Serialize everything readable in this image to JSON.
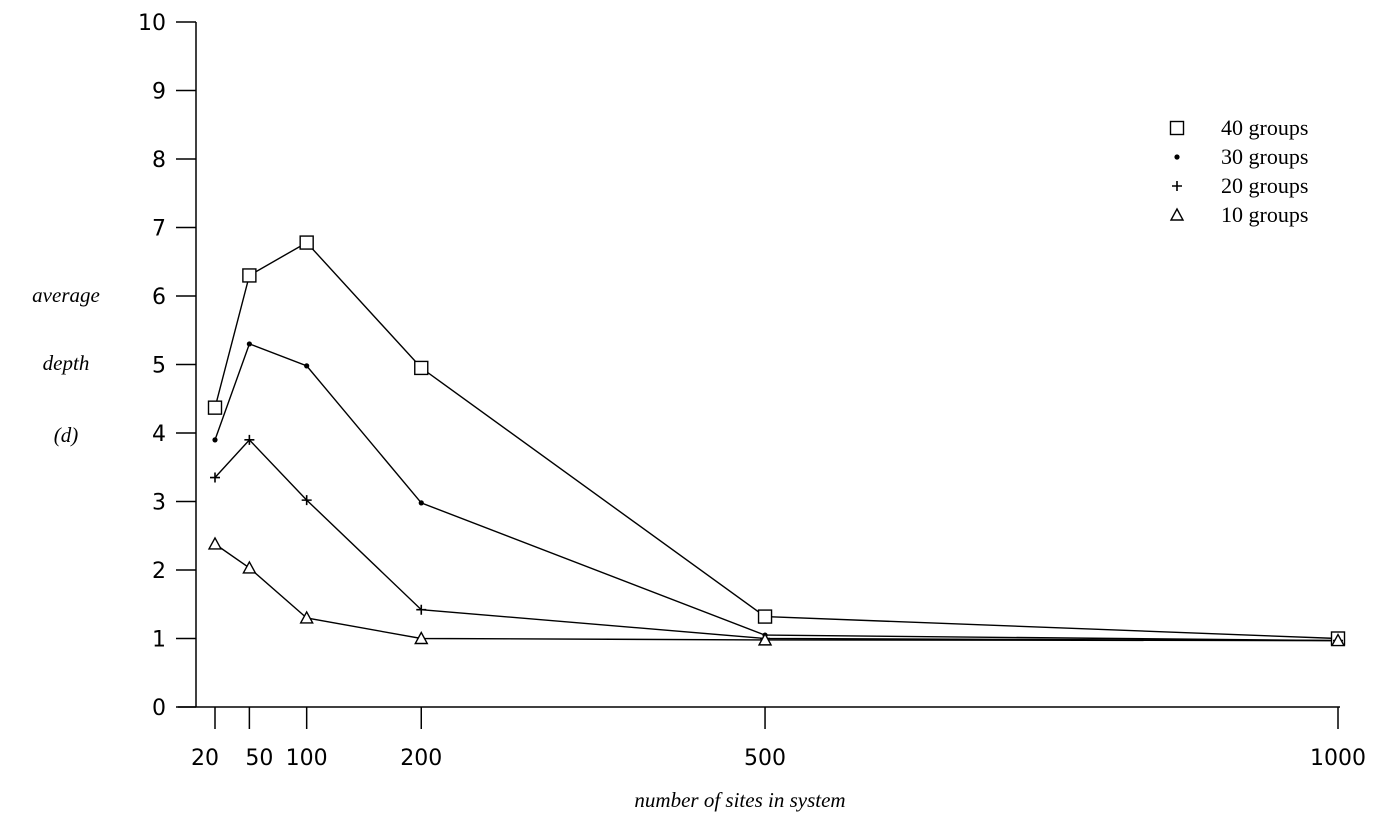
{
  "chart_data": {
    "type": "line",
    "x": [
      20,
      50,
      100,
      200,
      500,
      1000
    ],
    "x_tick_labels": [
      "20",
      "50",
      "100",
      "200",
      "500",
      "1000"
    ],
    "y_tick_labels": [
      "0",
      "1",
      "2",
      "3",
      "4",
      "5",
      "6",
      "7",
      "8",
      "9",
      "10"
    ],
    "ylim": [
      0,
      10
    ],
    "xlim": [
      20,
      1000
    ],
    "xlabel": "number of sites in system",
    "ylabel_lines": [
      "average",
      "depth",
      "(d)"
    ],
    "grid": false,
    "legend_position": "top-right",
    "series": [
      {
        "name": "40 groups",
        "marker": "square",
        "values": [
          4.37,
          6.3,
          6.78,
          4.95,
          1.32,
          1.0
        ]
      },
      {
        "name": "30 groups",
        "marker": "dot",
        "values": [
          3.9,
          5.3,
          4.98,
          2.98,
          1.05,
          0.97
        ]
      },
      {
        "name": "20 groups",
        "marker": "plus",
        "values": [
          3.35,
          3.9,
          3.02,
          1.42,
          1.0,
          0.97
        ]
      },
      {
        "name": "10 groups",
        "marker": "triangle",
        "values": [
          2.38,
          2.03,
          1.3,
          1.0,
          0.98,
          0.97
        ]
      }
    ]
  }
}
